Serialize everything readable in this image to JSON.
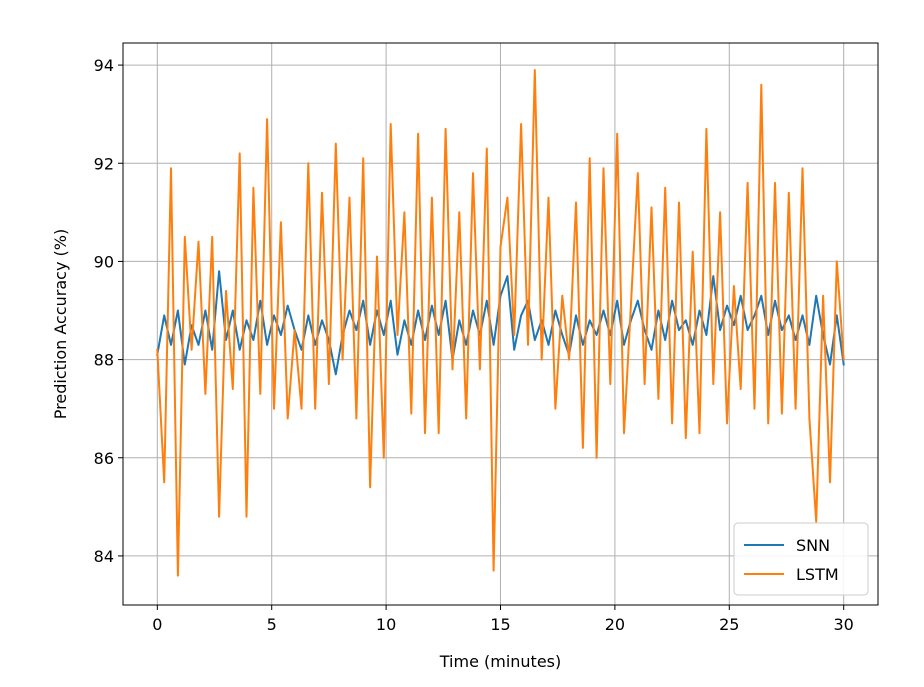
{
  "chart_data": {
    "type": "line",
    "title": "",
    "xlabel": "Time (minutes)",
    "ylabel": "Prediction Accuracy (%)",
    "xlim": [
      -1.5,
      31.5
    ],
    "ylim": [
      83.0,
      94.45
    ],
    "xticks": [
      0,
      5,
      10,
      15,
      20,
      25,
      30
    ],
    "yticks": [
      84,
      86,
      88,
      90,
      92,
      94
    ],
    "grid": true,
    "legend_position": "lower-right",
    "series": [
      {
        "name": "SNN",
        "color": "#1f77b4",
        "x": [
          0.0,
          0.3,
          0.6,
          0.9,
          1.2,
          1.5,
          1.8,
          2.1,
          2.4,
          2.7,
          3.0,
          3.3,
          3.6,
          3.9,
          4.2,
          4.5,
          4.8,
          5.1,
          5.4,
          5.7,
          6.0,
          6.3,
          6.6,
          6.9,
          7.2,
          7.5,
          7.8,
          8.1,
          8.4,
          8.7,
          9.0,
          9.3,
          9.6,
          9.9,
          10.2,
          10.5,
          10.8,
          11.1,
          11.4,
          11.7,
          12.0,
          12.3,
          12.6,
          12.9,
          13.2,
          13.5,
          13.8,
          14.1,
          14.4,
          14.7,
          15.0,
          15.3,
          15.6,
          15.9,
          16.2,
          16.5,
          16.8,
          17.1,
          17.4,
          17.7,
          18.0,
          18.3,
          18.6,
          18.9,
          19.2,
          19.5,
          19.8,
          20.1,
          20.4,
          20.7,
          21.0,
          21.3,
          21.6,
          21.9,
          22.2,
          22.5,
          22.8,
          23.1,
          23.4,
          23.7,
          24.0,
          24.3,
          24.6,
          24.9,
          25.2,
          25.5,
          25.8,
          26.1,
          26.4,
          26.7,
          27.0,
          27.3,
          27.6,
          27.9,
          28.2,
          28.5,
          28.8,
          29.1,
          29.4,
          29.7,
          30.0
        ],
        "y": [
          88.1,
          88.9,
          88.3,
          89.0,
          87.9,
          88.7,
          88.3,
          89.0,
          88.2,
          89.8,
          88.4,
          89.0,
          88.2,
          88.8,
          88.4,
          89.2,
          88.3,
          88.9,
          88.5,
          89.1,
          88.6,
          88.2,
          88.9,
          88.3,
          88.8,
          88.4,
          87.7,
          88.5,
          89.0,
          88.6,
          89.2,
          88.3,
          89.0,
          88.5,
          89.2,
          88.1,
          88.8,
          88.3,
          89.0,
          88.4,
          89.1,
          88.5,
          89.2,
          88.0,
          88.8,
          88.3,
          89.0,
          88.5,
          89.2,
          88.3,
          89.3,
          89.7,
          88.2,
          88.9,
          89.2,
          88.4,
          88.8,
          88.3,
          89.0,
          88.5,
          88.1,
          88.9,
          88.3,
          88.8,
          88.5,
          89.0,
          88.5,
          89.2,
          88.3,
          88.8,
          89.2,
          88.6,
          88.2,
          89.0,
          88.4,
          89.2,
          88.6,
          88.8,
          88.3,
          89.0,
          88.5,
          89.7,
          88.6,
          89.1,
          88.7,
          89.3,
          88.6,
          88.9,
          89.3,
          88.5,
          89.2,
          88.6,
          88.9,
          88.4,
          88.9,
          88.3,
          89.3,
          88.5,
          87.9,
          88.9,
          87.9
        ]
      },
      {
        "name": "LSTM",
        "color": "#ff7f0e",
        "x": [
          0.0,
          0.3,
          0.6,
          0.9,
          1.2,
          1.5,
          1.8,
          2.1,
          2.4,
          2.7,
          3.0,
          3.3,
          3.6,
          3.9,
          4.2,
          4.5,
          4.8,
          5.1,
          5.4,
          5.7,
          6.0,
          6.3,
          6.6,
          6.9,
          7.2,
          7.5,
          7.8,
          8.1,
          8.4,
          8.7,
          9.0,
          9.3,
          9.6,
          9.9,
          10.2,
          10.5,
          10.8,
          11.1,
          11.4,
          11.7,
          12.0,
          12.3,
          12.6,
          12.9,
          13.2,
          13.5,
          13.8,
          14.1,
          14.4,
          14.7,
          15.0,
          15.3,
          15.6,
          15.9,
          16.2,
          16.5,
          16.8,
          17.1,
          17.4,
          17.7,
          18.0,
          18.3,
          18.6,
          18.9,
          19.2,
          19.5,
          19.8,
          20.1,
          20.4,
          20.7,
          21.0,
          21.3,
          21.6,
          21.9,
          22.2,
          22.5,
          22.8,
          23.1,
          23.4,
          23.7,
          24.0,
          24.3,
          24.6,
          24.9,
          25.2,
          25.5,
          25.8,
          26.1,
          26.4,
          26.7,
          27.0,
          27.3,
          27.6,
          27.9,
          28.2,
          28.5,
          28.8,
          29.1,
          29.4,
          29.7,
          30.0
        ],
        "y": [
          88.2,
          85.5,
          91.9,
          83.6,
          90.5,
          88.2,
          90.4,
          87.3,
          90.5,
          84.8,
          89.4,
          87.4,
          92.2,
          84.8,
          91.5,
          87.3,
          92.9,
          87.0,
          90.8,
          86.8,
          88.6,
          87.0,
          92.0,
          87.0,
          91.4,
          87.5,
          92.4,
          88.0,
          91.3,
          86.8,
          92.1,
          85.4,
          90.1,
          86.0,
          92.8,
          88.5,
          91.0,
          86.9,
          92.6,
          86.5,
          91.3,
          86.5,
          92.7,
          87.8,
          91.0,
          86.8,
          91.8,
          87.8,
          92.3,
          83.7,
          90.3,
          91.3,
          88.5,
          92.8,
          88.3,
          93.9,
          88.0,
          91.3,
          87.0,
          89.3,
          88.0,
          91.2,
          86.2,
          92.1,
          86.0,
          91.9,
          87.5,
          92.6,
          86.5,
          89.1,
          91.8,
          87.5,
          91.1,
          87.2,
          91.5,
          86.7,
          91.2,
          86.4,
          90.2,
          86.5,
          92.7,
          87.5,
          91.0,
          86.7,
          89.5,
          87.4,
          91.6,
          87.0,
          93.6,
          86.7,
          91.6,
          86.9,
          91.4,
          87.0,
          91.9,
          86.8,
          84.7,
          89.3,
          85.5,
          90.0,
          88.0
        ]
      }
    ]
  }
}
